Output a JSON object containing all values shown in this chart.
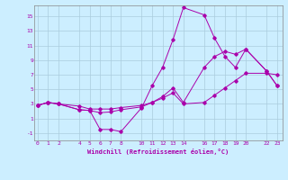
{
  "xlabel": "Windchill (Refroidissement éolien,°C)",
  "background_color": "#cceeff",
  "grid_color": "#aaccdd",
  "line_color": "#aa00aa",
  "x_ticks": [
    0,
    1,
    2,
    4,
    5,
    6,
    7,
    8,
    10,
    11,
    12,
    13,
    14,
    16,
    17,
    18,
    19,
    20,
    22,
    23
  ],
  "xlim": [
    -0.3,
    23.5
  ],
  "ylim": [
    -2.0,
    16.5
  ],
  "y_ticks": [
    -1,
    1,
    3,
    5,
    7,
    9,
    11,
    13,
    15
  ],
  "line1_x": [
    0,
    1,
    2,
    4,
    5,
    6,
    7,
    8,
    10,
    11,
    12,
    13,
    14,
    16,
    17,
    18,
    19,
    20,
    22,
    23
  ],
  "line1_y": [
    2.8,
    3.2,
    3.0,
    2.7,
    2.3,
    2.3,
    2.3,
    2.5,
    2.8,
    3.2,
    3.8,
    4.5,
    3.0,
    3.2,
    4.2,
    5.2,
    6.2,
    7.2,
    7.2,
    7.0
  ],
  "line2_x": [
    0,
    1,
    2,
    4,
    5,
    6,
    7,
    8,
    10,
    11,
    12,
    13,
    14,
    16,
    17,
    18,
    19,
    20,
    22,
    23
  ],
  "line2_y": [
    2.8,
    3.2,
    3.0,
    2.2,
    2.1,
    1.8,
    1.9,
    2.2,
    2.6,
    3.2,
    4.0,
    5.2,
    3.2,
    8.0,
    9.5,
    10.2,
    9.8,
    10.5,
    7.5,
    5.5
  ],
  "line3_x": [
    0,
    1,
    2,
    4,
    5,
    6,
    7,
    8,
    10,
    11,
    12,
    13,
    14,
    16,
    17,
    18,
    19,
    20,
    22,
    23
  ],
  "line3_y": [
    2.8,
    3.2,
    3.0,
    2.2,
    2.1,
    -0.5,
    -0.5,
    -0.8,
    2.5,
    5.5,
    8.0,
    11.8,
    16.2,
    15.2,
    12.0,
    9.5,
    8.0,
    10.5,
    7.5,
    5.5
  ]
}
